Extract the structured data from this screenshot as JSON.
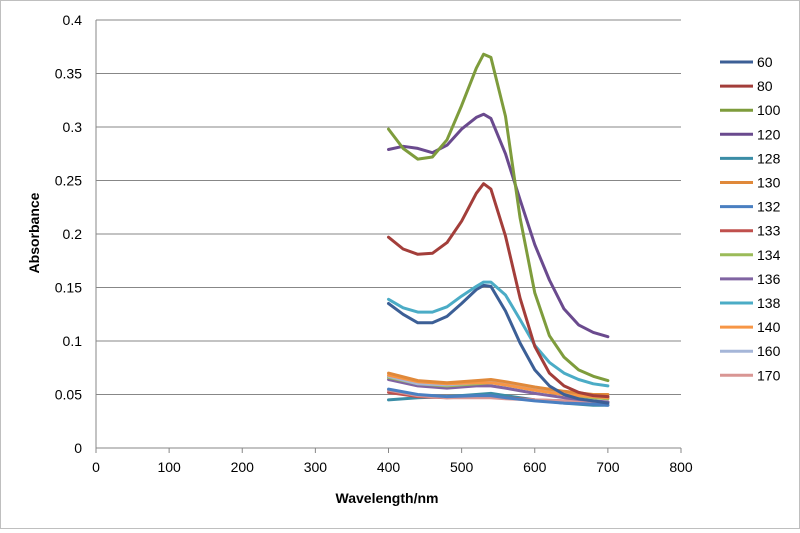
{
  "chart_data": {
    "type": "line",
    "title": "",
    "xlabel": "Wavelength/nm",
    "ylabel": "Absorbance",
    "xlim": [
      0,
      800
    ],
    "ylim": [
      0,
      0.4
    ],
    "x_ticks": [
      "0",
      "100",
      "200",
      "300",
      "400",
      "500",
      "600",
      "700",
      "800"
    ],
    "y_ticks": [
      "0",
      "0.05",
      "0.1",
      "0.15",
      "0.2",
      "0.25",
      "0.3",
      "0.35",
      "0.4"
    ],
    "grid": "horizontal",
    "legend_position": "right",
    "series": [
      {
        "name": "60",
        "color": "#3c5f96",
        "x": [
          400,
          420,
          440,
          460,
          480,
          500,
          520,
          530,
          540,
          560,
          580,
          600,
          620,
          640,
          660,
          680,
          700
        ],
        "y": [
          0.135,
          0.125,
          0.117,
          0.117,
          0.123,
          0.135,
          0.148,
          0.152,
          0.151,
          0.128,
          0.098,
          0.073,
          0.058,
          0.05,
          0.046,
          0.044,
          0.042
        ]
      },
      {
        "name": "80",
        "color": "#a33e3a",
        "x": [
          400,
          420,
          440,
          460,
          480,
          500,
          520,
          530,
          540,
          560,
          580,
          600,
          620,
          640,
          660,
          680,
          700
        ],
        "y": [
          0.197,
          0.186,
          0.181,
          0.182,
          0.192,
          0.212,
          0.238,
          0.247,
          0.242,
          0.198,
          0.14,
          0.095,
          0.07,
          0.058,
          0.052,
          0.049,
          0.048
        ]
      },
      {
        "name": "100",
        "color": "#7e9c3c",
        "x": [
          400,
          420,
          440,
          460,
          480,
          500,
          520,
          530,
          540,
          560,
          580,
          600,
          620,
          640,
          660,
          680,
          700
        ],
        "y": [
          0.298,
          0.28,
          0.27,
          0.272,
          0.288,
          0.32,
          0.355,
          0.368,
          0.365,
          0.31,
          0.215,
          0.145,
          0.105,
          0.085,
          0.073,
          0.067,
          0.063
        ]
      },
      {
        "name": "120",
        "color": "#6a4a8e",
        "x": [
          400,
          420,
          440,
          460,
          480,
          500,
          520,
          530,
          540,
          560,
          580,
          600,
          620,
          640,
          660,
          680,
          700
        ],
        "y": [
          0.279,
          0.282,
          0.28,
          0.276,
          0.283,
          0.298,
          0.309,
          0.312,
          0.308,
          0.275,
          0.232,
          0.19,
          0.157,
          0.13,
          0.115,
          0.108,
          0.104
        ]
      },
      {
        "name": "128",
        "color": "#3b8da6",
        "x": [
          400,
          440,
          480,
          520,
          540,
          560,
          600,
          640,
          680,
          700
        ],
        "y": [
          0.045,
          0.047,
          0.048,
          0.05,
          0.051,
          0.049,
          0.045,
          0.042,
          0.04,
          0.04
        ]
      },
      {
        "name": "130",
        "color": "#e0893a",
        "x": [
          400,
          440,
          480,
          520,
          540,
          560,
          600,
          640,
          680,
          700
        ],
        "y": [
          0.07,
          0.063,
          0.061,
          0.063,
          0.064,
          0.062,
          0.057,
          0.053,
          0.05,
          0.05
        ]
      },
      {
        "name": "132",
        "color": "#4a7fc1",
        "x": [
          400,
          440,
          480,
          520,
          540,
          560,
          600,
          640,
          680,
          700
        ],
        "y": [
          0.055,
          0.05,
          0.048,
          0.049,
          0.049,
          0.047,
          0.044,
          0.042,
          0.041,
          0.04
        ]
      },
      {
        "name": "133",
        "color": "#c0504d",
        "x": [
          400,
          440,
          480,
          520,
          540,
          560,
          600,
          640,
          680,
          700
        ],
        "y": [
          0.052,
          0.048,
          0.047,
          0.048,
          0.048,
          0.047,
          0.045,
          0.044,
          0.043,
          0.043
        ]
      },
      {
        "name": "134",
        "color": "#9bbb59",
        "x": [
          400,
          440,
          480,
          520,
          540,
          560,
          600,
          640,
          680,
          700
        ],
        "y": [
          0.066,
          0.06,
          0.058,
          0.06,
          0.061,
          0.059,
          0.054,
          0.05,
          0.047,
          0.046
        ]
      },
      {
        "name": "136",
        "color": "#8064a2",
        "x": [
          400,
          440,
          480,
          520,
          540,
          560,
          600,
          640,
          680,
          700
        ],
        "y": [
          0.064,
          0.058,
          0.056,
          0.058,
          0.058,
          0.056,
          0.051,
          0.047,
          0.044,
          0.043
        ]
      },
      {
        "name": "138",
        "color": "#4bacc6",
        "x": [
          400,
          420,
          440,
          460,
          480,
          500,
          520,
          530,
          540,
          560,
          580,
          600,
          620,
          640,
          660,
          680,
          700
        ],
        "y": [
          0.139,
          0.131,
          0.127,
          0.127,
          0.132,
          0.142,
          0.151,
          0.155,
          0.155,
          0.143,
          0.12,
          0.096,
          0.08,
          0.07,
          0.064,
          0.06,
          0.058
        ]
      },
      {
        "name": "140",
        "color": "#f79646",
        "x": [
          400,
          440,
          480,
          520,
          540,
          560,
          600,
          640,
          680,
          700
        ],
        "y": [
          0.068,
          0.062,
          0.06,
          0.061,
          0.061,
          0.059,
          0.054,
          0.05,
          0.048,
          0.047
        ]
      },
      {
        "name": "160",
        "color": "#a5b6d8",
        "x": [
          400,
          440,
          480,
          520,
          540,
          560,
          600,
          640,
          680,
          700
        ],
        "y": [
          0.067,
          0.06,
          0.059,
          0.061,
          0.062,
          0.06,
          0.055,
          0.051,
          0.049,
          0.048
        ]
      },
      {
        "name": "170",
        "color": "#d99694",
        "x": [
          400,
          440,
          480,
          520,
          540,
          560,
          600,
          640,
          680,
          700
        ],
        "y": [
          0.054,
          0.049,
          0.047,
          0.047,
          0.047,
          0.046,
          0.045,
          0.044,
          0.043,
          0.043
        ]
      }
    ]
  }
}
